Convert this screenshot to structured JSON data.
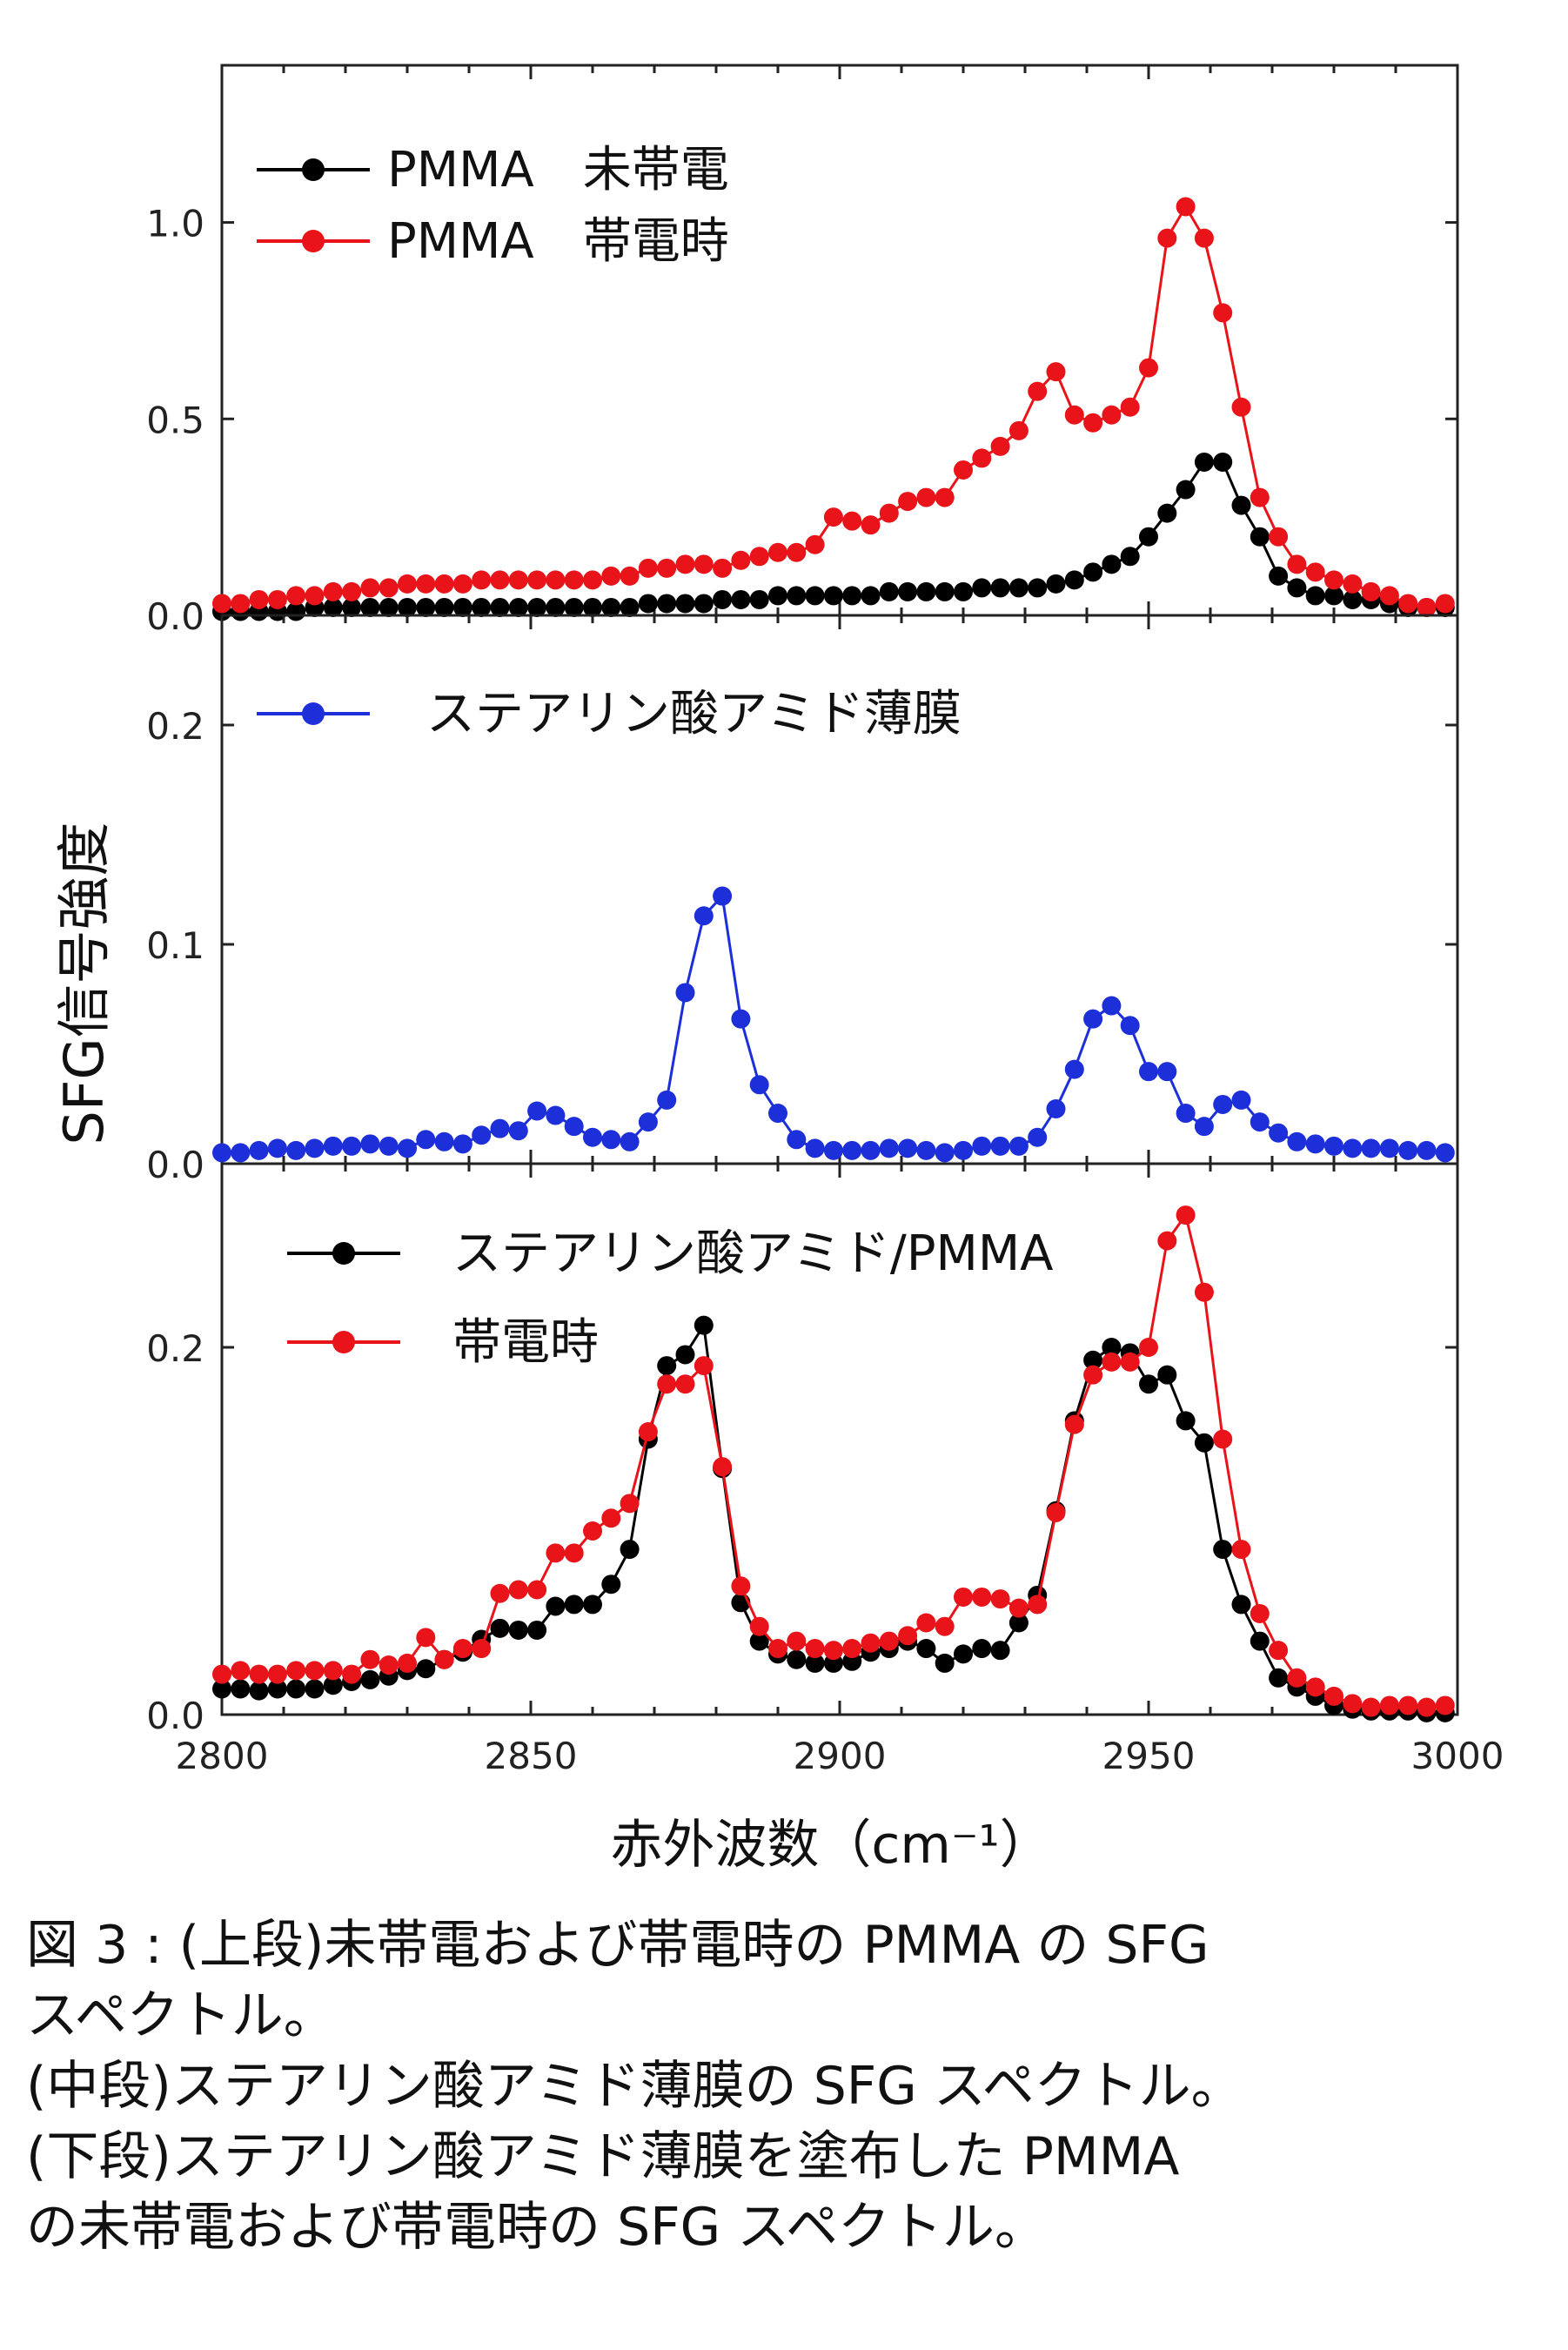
{
  "chart_data": [
    {
      "type": "line",
      "panel": "top",
      "ylim": [
        0,
        1.4
      ],
      "yticks": [
        0.0,
        0.5,
        1.0
      ],
      "ytick_labels": [
        "0.0",
        "0.5",
        "1.0"
      ],
      "legend_position": "top-left",
      "series": [
        {
          "name": "PMMA　未帯電",
          "color": "#000000",
          "x": [
            2800,
            2803,
            2806,
            2809,
            2812,
            2815,
            2818,
            2821,
            2824,
            2827,
            2830,
            2833,
            2836,
            2839,
            2842,
            2845,
            2848,
            2851,
            2854,
            2857,
            2860,
            2863,
            2866,
            2869,
            2872,
            2875,
            2878,
            2881,
            2884,
            2887,
            2890,
            2893,
            2896,
            2899,
            2902,
            2905,
            2908,
            2911,
            2914,
            2917,
            2920,
            2923,
            2926,
            2929,
            2932,
            2935,
            2938,
            2941,
            2944,
            2947,
            2950,
            2953,
            2956,
            2959,
            2962,
            2965,
            2968,
            2971,
            2974,
            2977,
            2980,
            2983,
            2986,
            2989,
            2992,
            2995,
            2998
          ],
          "values": [
            0.01,
            0.01,
            0.01,
            0.01,
            0.01,
            0.02,
            0.02,
            0.02,
            0.02,
            0.02,
            0.02,
            0.02,
            0.02,
            0.02,
            0.02,
            0.02,
            0.02,
            0.02,
            0.02,
            0.02,
            0.02,
            0.02,
            0.02,
            0.03,
            0.03,
            0.03,
            0.03,
            0.04,
            0.04,
            0.04,
            0.05,
            0.05,
            0.05,
            0.05,
            0.05,
            0.05,
            0.06,
            0.06,
            0.06,
            0.06,
            0.06,
            0.07,
            0.07,
            0.07,
            0.07,
            0.08,
            0.09,
            0.11,
            0.13,
            0.15,
            0.2,
            0.26,
            0.32,
            0.39,
            0.39,
            0.28,
            0.2,
            0.1,
            0.07,
            0.05,
            0.05,
            0.04,
            0.04,
            0.03,
            0.02,
            0.02,
            0.02
          ]
        },
        {
          "name": "PMMA　帯電時",
          "color": "#e8141a",
          "x": [
            2800,
            2803,
            2806,
            2809,
            2812,
            2815,
            2818,
            2821,
            2824,
            2827,
            2830,
            2833,
            2836,
            2839,
            2842,
            2845,
            2848,
            2851,
            2854,
            2857,
            2860,
            2863,
            2866,
            2869,
            2872,
            2875,
            2878,
            2881,
            2884,
            2887,
            2890,
            2893,
            2896,
            2899,
            2902,
            2905,
            2908,
            2911,
            2914,
            2917,
            2920,
            2923,
            2926,
            2929,
            2932,
            2935,
            2938,
            2941,
            2944,
            2947,
            2950,
            2953,
            2956,
            2959,
            2962,
            2965,
            2968,
            2971,
            2974,
            2977,
            2980,
            2983,
            2986,
            2989,
            2992,
            2995,
            2998
          ],
          "values": [
            0.03,
            0.03,
            0.04,
            0.04,
            0.05,
            0.05,
            0.06,
            0.06,
            0.07,
            0.07,
            0.08,
            0.08,
            0.08,
            0.08,
            0.09,
            0.09,
            0.09,
            0.09,
            0.09,
            0.09,
            0.09,
            0.1,
            0.1,
            0.12,
            0.12,
            0.13,
            0.13,
            0.12,
            0.14,
            0.15,
            0.16,
            0.16,
            0.18,
            0.25,
            0.24,
            0.23,
            0.26,
            0.29,
            0.3,
            0.3,
            0.37,
            0.4,
            0.43,
            0.47,
            0.57,
            0.62,
            0.51,
            0.49,
            0.51,
            0.53,
            0.63,
            0.96,
            1.04,
            0.96,
            0.77,
            0.53,
            0.3,
            0.2,
            0.13,
            0.11,
            0.09,
            0.08,
            0.06,
            0.05,
            0.03,
            0.02,
            0.03
          ]
        }
      ]
    },
    {
      "type": "line",
      "panel": "middle",
      "ylim": [
        0,
        0.25
      ],
      "yticks": [
        0.0,
        0.1,
        0.2
      ],
      "ytick_labels": [
        "0.0",
        "0.1",
        "0.2"
      ],
      "legend_position": "top-left",
      "series": [
        {
          "name": "ステアリン酸アミド薄膜",
          "color": "#1c2fd8",
          "x": [
            2800,
            2803,
            2806,
            2809,
            2812,
            2815,
            2818,
            2821,
            2824,
            2827,
            2830,
            2833,
            2836,
            2839,
            2842,
            2845,
            2848,
            2851,
            2854,
            2857,
            2860,
            2863,
            2866,
            2869,
            2872,
            2875,
            2878,
            2881,
            2884,
            2887,
            2890,
            2893,
            2896,
            2899,
            2902,
            2905,
            2908,
            2911,
            2914,
            2917,
            2920,
            2923,
            2926,
            2929,
            2932,
            2935,
            2938,
            2941,
            2944,
            2947,
            2950,
            2953,
            2956,
            2959,
            2962,
            2965,
            2968,
            2971,
            2974,
            2977,
            2980,
            2983,
            2986,
            2989,
            2992,
            2995,
            2998
          ],
          "values": [
            0.005,
            0.005,
            0.006,
            0.007,
            0.006,
            0.007,
            0.008,
            0.008,
            0.009,
            0.008,
            0.007,
            0.011,
            0.01,
            0.009,
            0.013,
            0.016,
            0.015,
            0.024,
            0.022,
            0.017,
            0.012,
            0.011,
            0.01,
            0.019,
            0.029,
            0.078,
            0.113,
            0.122,
            0.066,
            0.036,
            0.023,
            0.011,
            0.007,
            0.006,
            0.006,
            0.006,
            0.007,
            0.007,
            0.006,
            0.005,
            0.006,
            0.008,
            0.008,
            0.008,
            0.012,
            0.025,
            0.043,
            0.066,
            0.072,
            0.063,
            0.042,
            0.042,
            0.023,
            0.017,
            0.027,
            0.029,
            0.019,
            0.014,
            0.01,
            0.009,
            0.008,
            0.007,
            0.007,
            0.007,
            0.006,
            0.006,
            0.005
          ]
        }
      ]
    },
    {
      "type": "line",
      "panel": "bottom",
      "ylim": [
        0,
        0.3
      ],
      "yticks": [
        0.0,
        0.2
      ],
      "ytick_labels": [
        "0.0",
        "0.2"
      ],
      "xlim": [
        2800,
        3000
      ],
      "xticks": [
        2800,
        2850,
        2900,
        2950,
        3000
      ],
      "xtick_labels": [
        "2800",
        "2850",
        "2900",
        "2950",
        "3000"
      ],
      "xlabel": "赤外波数（cm⁻¹）",
      "ylabel": "SFG信号強度",
      "legend_position": "top-left",
      "series": [
        {
          "name": "ステアリン酸アミド/PMMA",
          "color": "#000000",
          "x": [
            2800,
            2803,
            2806,
            2809,
            2812,
            2815,
            2818,
            2821,
            2824,
            2827,
            2830,
            2833,
            2836,
            2839,
            2842,
            2845,
            2848,
            2851,
            2854,
            2857,
            2860,
            2863,
            2866,
            2869,
            2872,
            2875,
            2878,
            2881,
            2884,
            2887,
            2890,
            2893,
            2896,
            2899,
            2902,
            2905,
            2908,
            2911,
            2914,
            2917,
            2920,
            2923,
            2926,
            2929,
            2932,
            2935,
            2938,
            2941,
            2944,
            2947,
            2950,
            2953,
            2956,
            2959,
            2962,
            2965,
            2968,
            2971,
            2974,
            2977,
            2980,
            2983,
            2986,
            2989,
            2992,
            2995,
            2998
          ],
          "values": [
            0.014,
            0.014,
            0.013,
            0.014,
            0.014,
            0.014,
            0.016,
            0.018,
            0.019,
            0.021,
            0.024,
            0.025,
            0.03,
            0.034,
            0.041,
            0.047,
            0.046,
            0.046,
            0.059,
            0.06,
            0.06,
            0.071,
            0.09,
            0.15,
            0.19,
            0.196,
            0.212,
            0.134,
            0.061,
            0.04,
            0.033,
            0.03,
            0.028,
            0.028,
            0.029,
            0.034,
            0.036,
            0.04,
            0.036,
            0.028,
            0.033,
            0.036,
            0.035,
            0.05,
            0.065,
            0.111,
            0.16,
            0.193,
            0.2,
            0.197,
            0.18,
            0.185,
            0.16,
            0.148,
            0.09,
            0.06,
            0.04,
            0.02,
            0.015,
            0.01,
            0.005,
            0.003,
            0.002,
            0.002,
            0.002,
            0.001,
            0.001
          ]
        },
        {
          "name": "帯電時",
          "color": "#e8141a",
          "x": [
            2800,
            2803,
            2806,
            2809,
            2812,
            2815,
            2818,
            2821,
            2824,
            2827,
            2830,
            2833,
            2836,
            2839,
            2842,
            2845,
            2848,
            2851,
            2854,
            2857,
            2860,
            2863,
            2866,
            2869,
            2872,
            2875,
            2878,
            2881,
            2884,
            2887,
            2890,
            2893,
            2896,
            2899,
            2902,
            2905,
            2908,
            2911,
            2914,
            2917,
            2920,
            2923,
            2926,
            2929,
            2932,
            2935,
            2938,
            2941,
            2944,
            2947,
            2950,
            2953,
            2956,
            2959,
            2962,
            2965,
            2968,
            2971,
            2974,
            2977,
            2980,
            2983,
            2986,
            2989,
            2992,
            2995,
            2998
          ],
          "values": [
            0.022,
            0.024,
            0.022,
            0.022,
            0.024,
            0.024,
            0.024,
            0.022,
            0.03,
            0.027,
            0.028,
            0.042,
            0.03,
            0.036,
            0.036,
            0.066,
            0.068,
            0.068,
            0.088,
            0.088,
            0.1,
            0.107,
            0.115,
            0.154,
            0.18,
            0.18,
            0.19,
            0.135,
            0.07,
            0.048,
            0.036,
            0.04,
            0.036,
            0.035,
            0.036,
            0.039,
            0.04,
            0.043,
            0.05,
            0.048,
            0.064,
            0.064,
            0.063,
            0.058,
            0.06,
            0.11,
            0.158,
            0.185,
            0.192,
            0.192,
            0.2,
            0.258,
            0.272,
            0.23,
            0.15,
            0.09,
            0.055,
            0.035,
            0.02,
            0.015,
            0.01,
            0.006,
            0.004,
            0.005,
            0.005,
            0.004,
            0.005
          ]
        }
      ]
    }
  ],
  "caption": {
    "line1": "図 3 : (上段)未帯電および帯電時の PMMA の SFG",
    "line2": "スペクトル。",
    "line3": "(中段)ステアリン酸アミド薄膜の SFG スペクトル。",
    "line4": "(下段)ステアリン酸アミド薄膜を塗布した PMMA",
    "line5": "の未帯電および帯電時の SFG スペクトル。"
  }
}
